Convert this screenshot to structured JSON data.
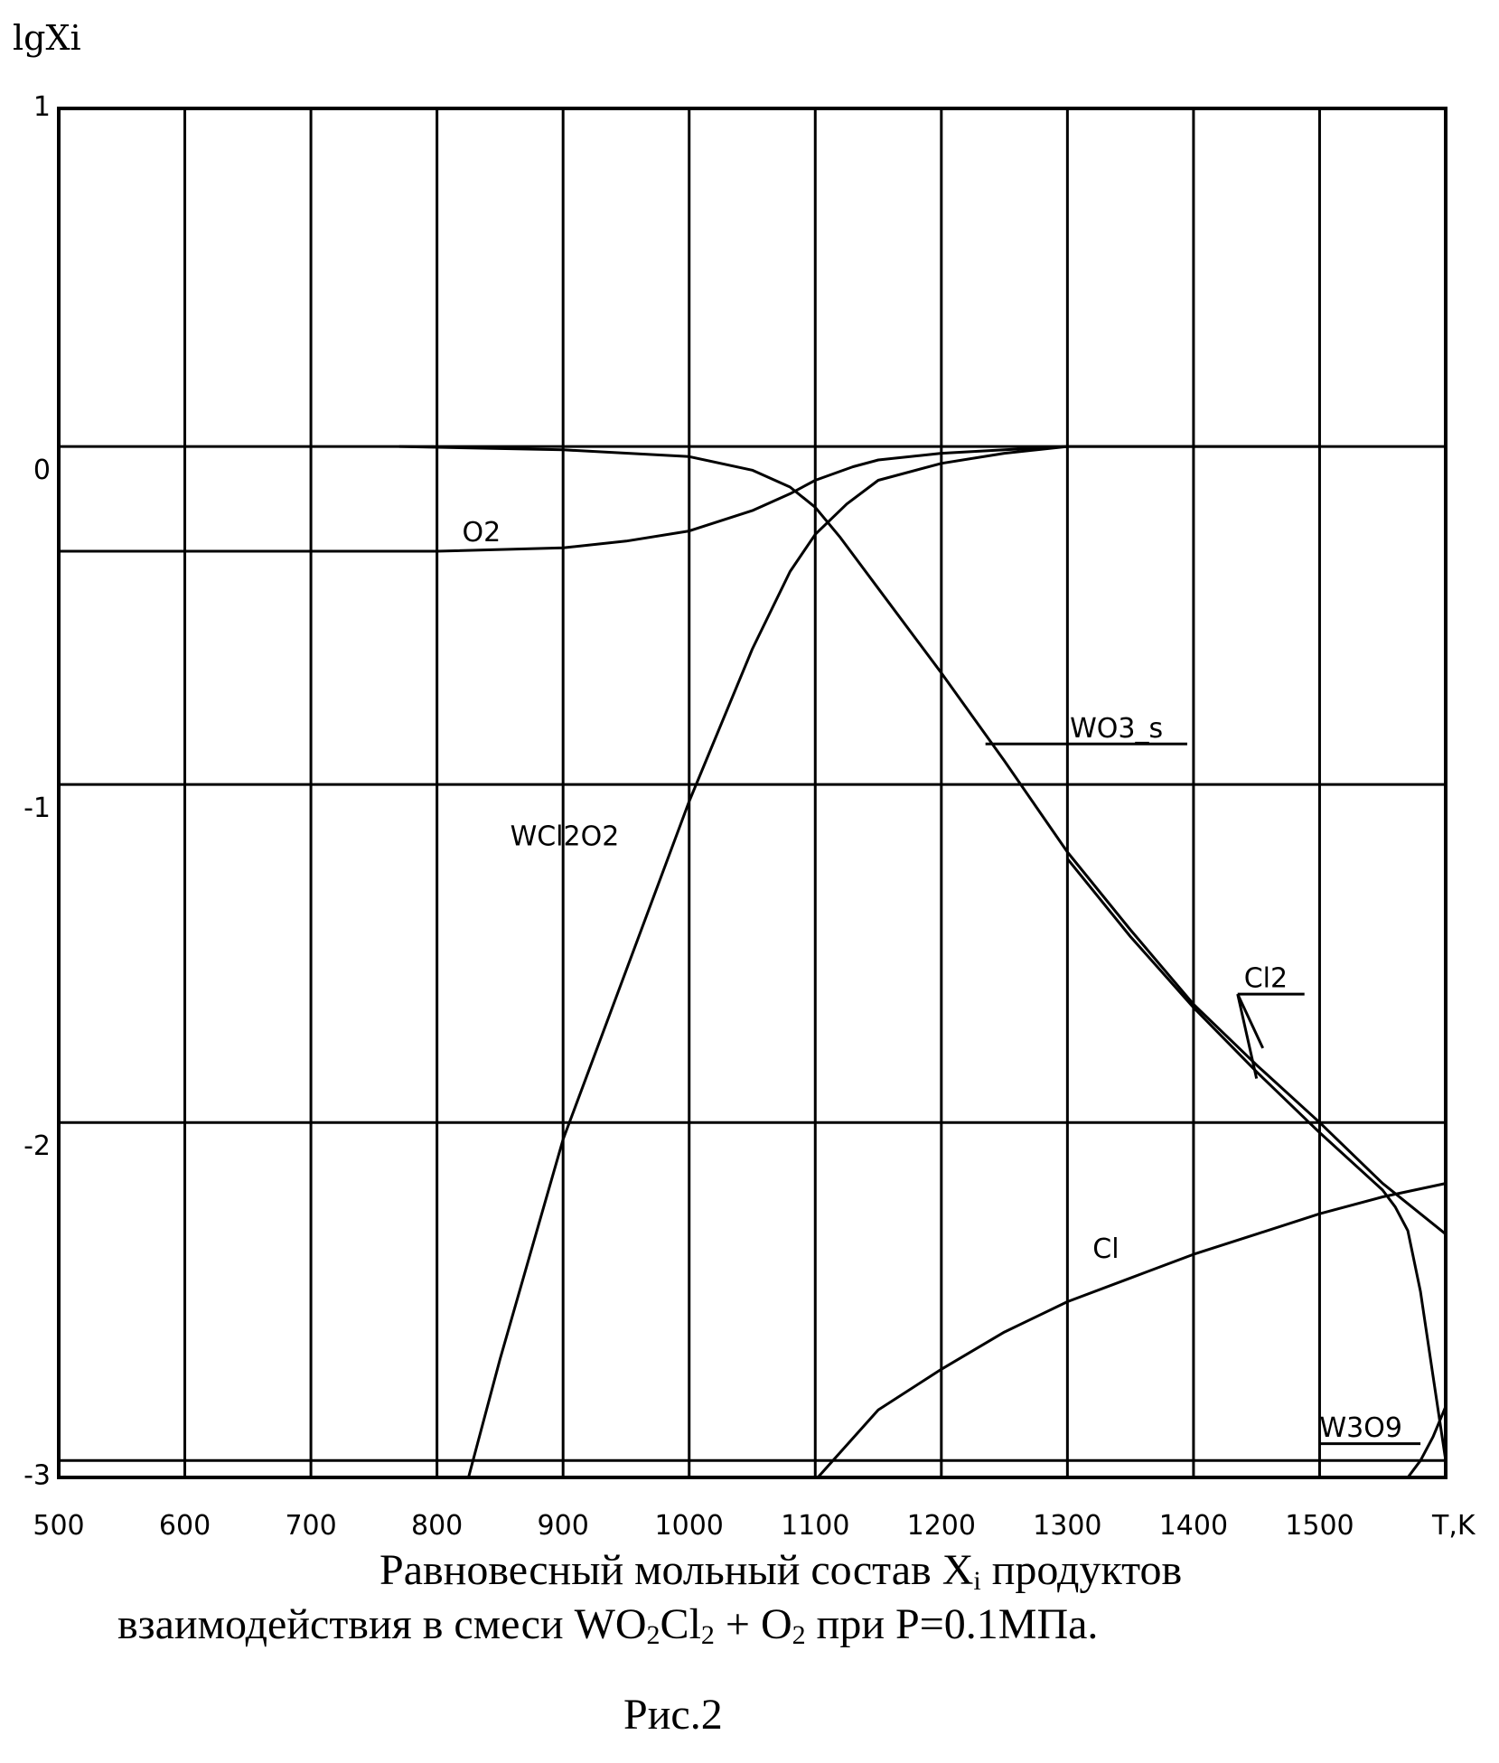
{
  "chart_data": {
    "type": "line",
    "ylabel": "lgXi",
    "xlabel": "T,K",
    "xlim": [
      500,
      1600
    ],
    "ylim": [
      -3.05,
      1
    ],
    "x_ticks": [
      "500",
      "600",
      "700",
      "800",
      "900",
      "1000",
      "1100",
      "1200",
      "1300",
      "1400",
      "1500"
    ],
    "y_ticks": [
      "1",
      "0",
      "-1",
      "-2",
      "-3"
    ],
    "grid": true,
    "series": [
      {
        "name": "O2",
        "x": [
          770,
          900,
          1000,
          1050,
          1080,
          1100,
          1120,
          1150,
          1200,
          1250,
          1300,
          1350,
          1400,
          1450,
          1500,
          1550,
          1600
        ],
        "y": [
          0,
          -0.01,
          -0.03,
          -0.07,
          -0.12,
          -0.18,
          -0.27,
          -0.42,
          -0.67,
          -0.93,
          -1.2,
          -1.43,
          -1.65,
          -1.83,
          -2.0,
          -2.18,
          -2.33
        ]
      },
      {
        "name": "WO3_s",
        "x": [
          500,
          700,
          800,
          900,
          950,
          1000,
          1050,
          1080,
          1100,
          1130,
          1150,
          1200,
          1250,
          1300,
          1400,
          1500
        ],
        "y": [
          -0.31,
          -0.31,
          -0.31,
          -0.3,
          -0.28,
          -0.25,
          -0.19,
          -0.14,
          -0.1,
          -0.06,
          -0.04,
          -0.02,
          -0.01,
          0,
          0,
          0
        ]
      },
      {
        "name": "WCl2O2",
        "x": [
          825,
          850,
          900,
          950,
          1000,
          1050,
          1080,
          1100,
          1125,
          1150,
          1200,
          1250,
          1300
        ],
        "y": [
          -3.05,
          -2.7,
          -2.05,
          -1.55,
          -1.05,
          -0.6,
          -0.37,
          -0.26,
          -0.17,
          -0.1,
          -0.05,
          -0.02,
          0
        ]
      },
      {
        "name": "Cl2",
        "x": [
          1300,
          1350,
          1400,
          1450,
          1500,
          1550,
          1560,
          1570,
          1580,
          1590,
          1600
        ],
        "y": [
          -1.22,
          -1.45,
          -1.66,
          -1.85,
          -2.03,
          -2.2,
          -2.25,
          -2.32,
          -2.5,
          -2.75,
          -3.0
        ]
      },
      {
        "name": "Cl",
        "x": [
          1102,
          1150,
          1200,
          1250,
          1300,
          1350,
          1400,
          1450,
          1500,
          1550,
          1600
        ],
        "y": [
          -3.05,
          -2.85,
          -2.73,
          -2.62,
          -2.53,
          -2.46,
          -2.39,
          -2.33,
          -2.27,
          -2.22,
          -2.18
        ]
      },
      {
        "name": "W3O9",
        "x": [
          1570,
          1580,
          1590,
          1600
        ],
        "y": [
          -3.05,
          -3.0,
          -2.93,
          -2.84
        ]
      }
    ],
    "labels": {
      "o2": "O2",
      "wo3s": "WO3_s",
      "wcl2o2": "WCl2O2",
      "cl2": "Cl2",
      "cl": "Cl",
      "w3o9": "W3O9"
    }
  },
  "caption": {
    "line1_a": "Равновесный мольный состав X",
    "line1_sub": "i",
    "line1_b": " продуктов",
    "line2_a": "взаимодействия в смеси WO",
    "line2_sub1": "2",
    "line2_b": "Cl",
    "line2_sub2": "2",
    "line2_c": " + O",
    "line2_sub3": "2",
    "line2_d": " при P=0.1МПа.",
    "figure_label": "Рис.2"
  }
}
